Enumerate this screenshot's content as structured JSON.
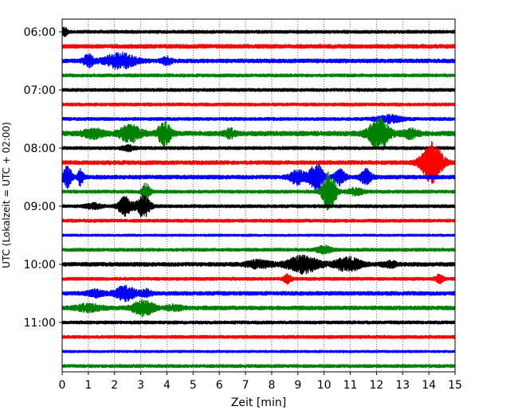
{
  "chart_data": {
    "type": "line",
    "title": "",
    "xlabel": "Zeit  [min]",
    "ylabel": "UTC (Lokalzeit = UTC + 02:00)",
    "xlim": [
      0,
      15
    ],
    "x_ticks": [
      "0",
      "1",
      "2",
      "3",
      "4",
      "5",
      "6",
      "7",
      "8",
      "9",
      "10",
      "11",
      "12",
      "13",
      "14",
      "15"
    ],
    "y_tick_labels": [
      "06:00",
      "07:00",
      "08:00",
      "09:00",
      "10:00",
      "11:00"
    ],
    "grid": {
      "vertical": true,
      "style": "dotted"
    },
    "trace_interval_minutes": 15,
    "first_trace_utc": "06:00",
    "color_cycle": [
      "#000000",
      "#ff0000",
      "#0000ff",
      "#008000"
    ],
    "series": [
      {
        "start": "06:00",
        "color": "#000000",
        "noise": 2,
        "events": [
          {
            "t": 0.1,
            "amp": 5,
            "dur": 0.2
          }
        ]
      },
      {
        "start": "06:15",
        "color": "#ff0000",
        "noise": 2.5,
        "events": []
      },
      {
        "start": "06:30",
        "color": "#0000ff",
        "noise": 2.5,
        "events": [
          {
            "t": 1.0,
            "amp": 7,
            "dur": 0.4
          },
          {
            "t": 2.2,
            "amp": 9,
            "dur": 1.2
          },
          {
            "t": 4.0,
            "amp": 4,
            "dur": 0.4
          }
        ]
      },
      {
        "start": "06:45",
        "color": "#008000",
        "noise": 2,
        "events": []
      },
      {
        "start": "07:00",
        "color": "#000000",
        "noise": 2,
        "events": []
      },
      {
        "start": "07:15",
        "color": "#ff0000",
        "noise": 2,
        "events": []
      },
      {
        "start": "07:30",
        "color": "#0000ff",
        "noise": 2,
        "events": [
          {
            "t": 12.5,
            "amp": 4,
            "dur": 1.0
          }
        ]
      },
      {
        "start": "07:45",
        "color": "#008000",
        "noise": 3,
        "events": [
          {
            "t": 1.2,
            "amp": 5,
            "dur": 0.8
          },
          {
            "t": 2.6,
            "amp": 10,
            "dur": 0.8
          },
          {
            "t": 3.9,
            "amp": 14,
            "dur": 0.5
          },
          {
            "t": 6.4,
            "amp": 5,
            "dur": 0.4
          },
          {
            "t": 12.1,
            "amp": 18,
            "dur": 0.8
          },
          {
            "t": 13.3,
            "amp": 5,
            "dur": 0.6
          }
        ]
      },
      {
        "start": "08:00",
        "color": "#000000",
        "noise": 2,
        "events": [
          {
            "t": 2.5,
            "amp": 3,
            "dur": 0.5
          }
        ]
      },
      {
        "start": "08:15",
        "color": "#ff0000",
        "noise": 2.5,
        "events": [
          {
            "t": 14.1,
            "amp": 24,
            "dur": 0.8
          }
        ]
      },
      {
        "start": "08:30",
        "color": "#0000ff",
        "noise": 2.5,
        "events": [
          {
            "t": 0.2,
            "amp": 14,
            "dur": 0.3
          },
          {
            "t": 0.7,
            "amp": 10,
            "dur": 0.2
          },
          {
            "t": 9.0,
            "amp": 8,
            "dur": 0.6
          },
          {
            "t": 9.7,
            "amp": 18,
            "dur": 0.5
          },
          {
            "t": 10.6,
            "amp": 9,
            "dur": 0.4
          },
          {
            "t": 11.6,
            "amp": 9,
            "dur": 0.4
          }
        ]
      },
      {
        "start": "08:45",
        "color": "#008000",
        "noise": 2,
        "events": [
          {
            "t": 3.2,
            "amp": 10,
            "dur": 0.3
          },
          {
            "t": 10.2,
            "amp": 25,
            "dur": 0.5
          },
          {
            "t": 11.2,
            "amp": 4,
            "dur": 0.6
          }
        ]
      },
      {
        "start": "09:00",
        "color": "#000000",
        "noise": 2,
        "events": [
          {
            "t": 1.2,
            "amp": 3,
            "dur": 0.6
          },
          {
            "t": 2.4,
            "amp": 12,
            "dur": 0.5
          },
          {
            "t": 3.1,
            "amp": 14,
            "dur": 0.5
          }
        ]
      },
      {
        "start": "09:15",
        "color": "#ff0000",
        "noise": 2,
        "events": []
      },
      {
        "start": "09:30",
        "color": "#0000ff",
        "noise": 1.5,
        "events": []
      },
      {
        "start": "09:45",
        "color": "#008000",
        "noise": 2,
        "events": [
          {
            "t": 10.0,
            "amp": 4,
            "dur": 0.6
          }
        ]
      },
      {
        "start": "10:00",
        "color": "#000000",
        "noise": 2.5,
        "events": [
          {
            "t": 7.5,
            "amp": 4,
            "dur": 1.0
          },
          {
            "t": 9.2,
            "amp": 10,
            "dur": 1.2
          },
          {
            "t": 10.9,
            "amp": 8,
            "dur": 1.0
          },
          {
            "t": 12.5,
            "amp": 3,
            "dur": 0.6
          }
        ]
      },
      {
        "start": "10:15",
        "color": "#ff0000",
        "noise": 2,
        "events": [
          {
            "t": 8.6,
            "amp": 5,
            "dur": 0.3
          },
          {
            "t": 14.4,
            "amp": 5,
            "dur": 0.3
          }
        ]
      },
      {
        "start": "10:30",
        "color": "#0000ff",
        "noise": 2.5,
        "events": [
          {
            "t": 1.3,
            "amp": 4,
            "dur": 0.6
          },
          {
            "t": 2.4,
            "amp": 8,
            "dur": 0.8
          },
          {
            "t": 3.2,
            "amp": 4,
            "dur": 0.4
          }
        ]
      },
      {
        "start": "10:45",
        "color": "#008000",
        "noise": 2.5,
        "events": [
          {
            "t": 1.0,
            "amp": 4,
            "dur": 1.0
          },
          {
            "t": 3.1,
            "amp": 9,
            "dur": 0.8
          },
          {
            "t": 4.3,
            "amp": 3,
            "dur": 0.6
          }
        ]
      },
      {
        "start": "11:00",
        "color": "#000000",
        "noise": 2,
        "events": []
      },
      {
        "start": "11:15",
        "color": "#ff0000",
        "noise": 2,
        "events": []
      },
      {
        "start": "11:30",
        "color": "#0000ff",
        "noise": 1.5,
        "events": []
      },
      {
        "start": "11:45",
        "color": "#008000",
        "noise": 2,
        "events": []
      }
    ]
  }
}
